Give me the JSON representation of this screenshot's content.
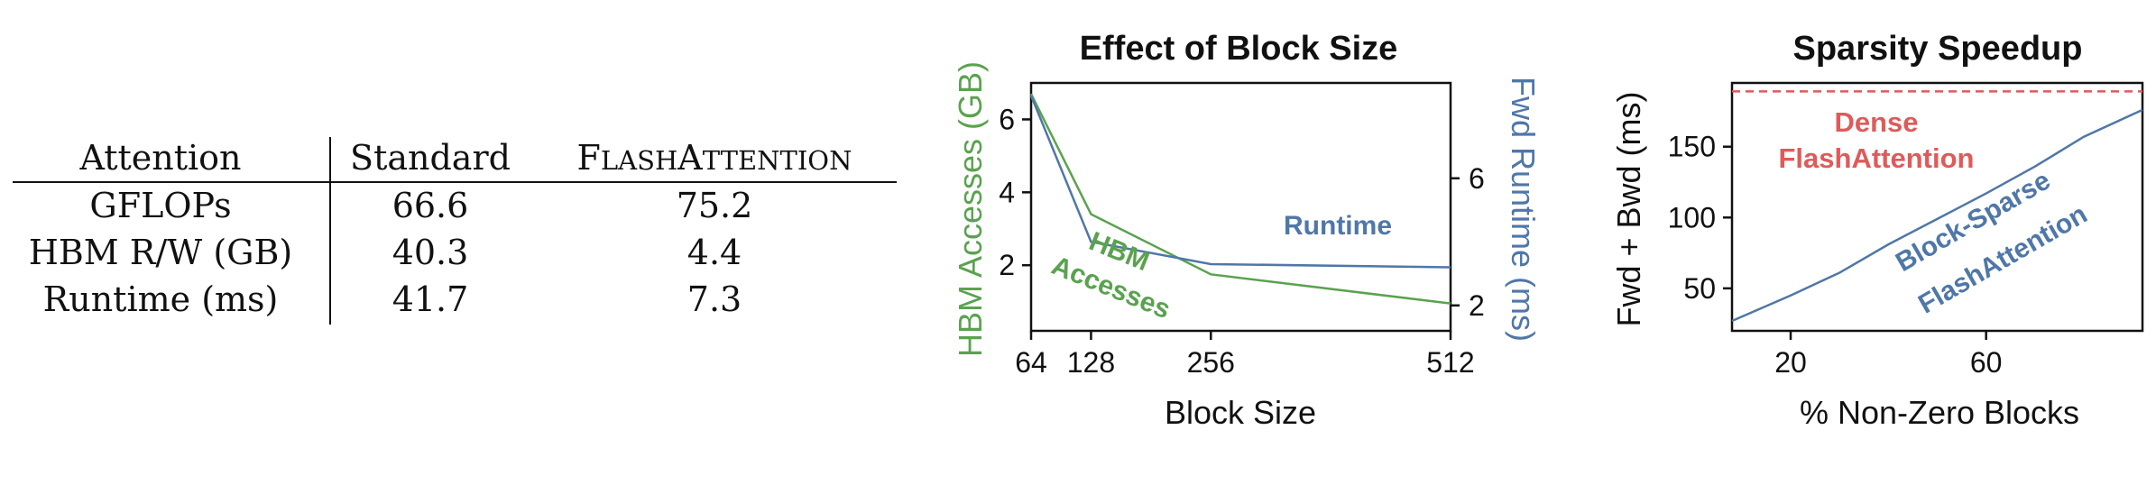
{
  "colors": {
    "green": "#5aa24f",
    "blue": "#4f77a8",
    "red": "#e05a5a",
    "black": "#111111"
  },
  "table": {
    "headers": [
      "Attention",
      "Standard",
      "FlashAttention"
    ],
    "rows": [
      [
        "GFLOPs",
        "66.6",
        "75.2"
      ],
      [
        "HBM R/W (GB)",
        "40.3",
        "4.4"
      ],
      [
        "Runtime (ms)",
        "41.7",
        "7.3"
      ]
    ]
  },
  "chart_data": [
    {
      "type": "line",
      "title": "Effect of Block Size",
      "xlabel": "Block Size",
      "ylabel": "HBM Accesses (GB)",
      "y2label": "Fwd Runtime (ms)",
      "x": [
        64,
        128,
        256,
        512
      ],
      "xticks": [
        64,
        128,
        256,
        512
      ],
      "xlim": [
        64,
        512
      ],
      "ylim": [
        0.2,
        7.0
      ],
      "yticks": [
        2,
        4,
        6
      ],
      "y2lim": [
        1.2,
        9.0
      ],
      "y2ticks": [
        2,
        6
      ],
      "series": [
        {
          "name": "HBM Accesses",
          "axis": "left",
          "color": "#5aa24f",
          "values": [
            6.7,
            3.4,
            1.75,
            0.95
          ]
        },
        {
          "name": "Runtime",
          "axis": "right",
          "color": "#4f77a8",
          "values": [
            8.6,
            4.0,
            3.3,
            3.2
          ]
        }
      ],
      "annotations": [
        {
          "text": "Runtime",
          "color": "#4f77a8"
        },
        {
          "text": "HBM",
          "color": "#5aa24f"
        },
        {
          "text": "Accesses",
          "color": "#5aa24f"
        }
      ]
    },
    {
      "type": "line",
      "title": "Sparsity Speedup",
      "xlabel": "% Non-Zero Blocks",
      "ylabel": "Fwd + Bwd (ms)",
      "xlim": [
        8,
        92
      ],
      "xticks": [
        20,
        60
      ],
      "ylim": [
        20,
        195
      ],
      "yticks": [
        50,
        100,
        150
      ],
      "series": [
        {
          "name": "Block-Sparse FlashAttention",
          "color": "#4f77a8",
          "style": "solid",
          "x": [
            8,
            20,
            30,
            40,
            50,
            60,
            70,
            80,
            92
          ],
          "values": [
            27,
            45,
            61,
            81,
            99,
            117,
            136,
            157,
            176
          ]
        },
        {
          "name": "Dense FlashAttention",
          "color": "#e05a5a",
          "style": "dashed",
          "x": [
            8,
            92
          ],
          "values": [
            189,
            189
          ]
        }
      ],
      "annotations": [
        {
          "text": "Dense",
          "color": "#e05a5a"
        },
        {
          "text": "FlashAttention",
          "color": "#e05a5a"
        },
        {
          "text": "Block-Sparse",
          "color": "#4f77a8"
        },
        {
          "text": "FlashAttention",
          "color": "#4f77a8"
        }
      ]
    }
  ]
}
